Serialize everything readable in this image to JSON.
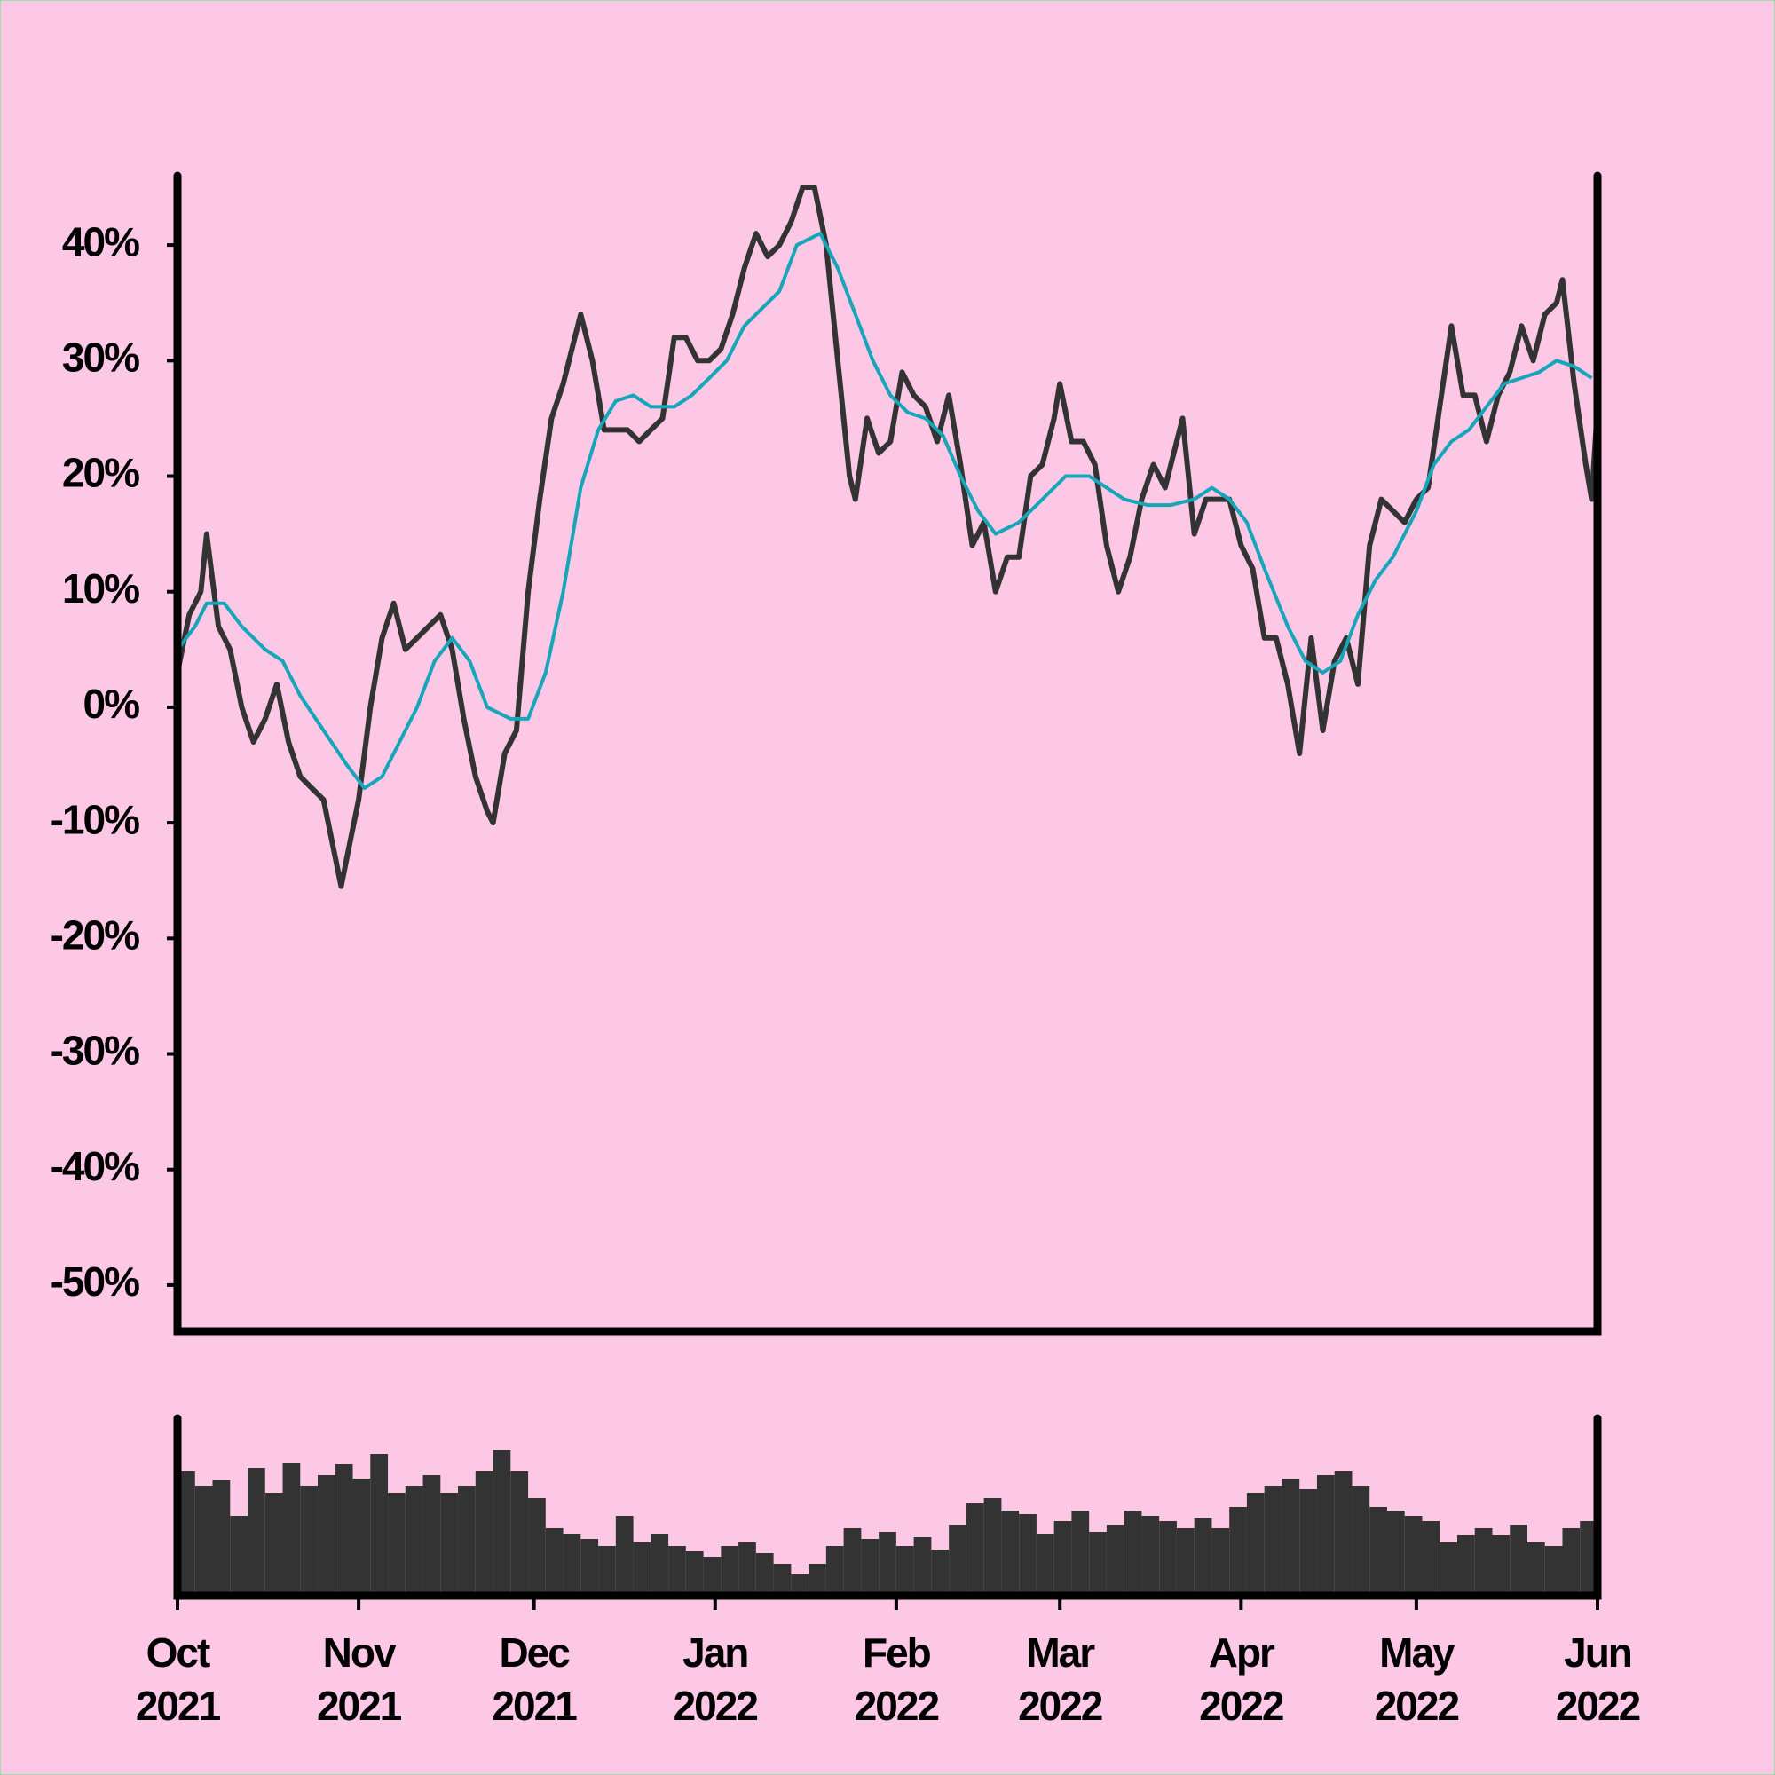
{
  "chart_data": [
    {
      "type": "line",
      "xlim": [
        0,
        243
      ],
      "ylim": [
        -54,
        46
      ],
      "yticks": [
        {
          "value": -50,
          "label": "-50%"
        },
        {
          "value": -40,
          "label": "-40%"
        },
        {
          "value": -30,
          "label": "-30%"
        },
        {
          "value": -20,
          "label": "-20%"
        },
        {
          "value": -10,
          "label": "-10%"
        },
        {
          "value": 0,
          "label": "0%"
        },
        {
          "value": 10,
          "label": "10%"
        },
        {
          "value": 20,
          "label": "20%"
        },
        {
          "value": 30,
          "label": "30%"
        },
        {
          "value": 40,
          "label": "40%"
        }
      ],
      "series": [
        {
          "color": "#333333",
          "x": [
            0,
            2,
            4,
            5,
            7,
            9,
            11,
            13,
            15,
            17,
            19,
            21,
            23,
            25,
            27,
            28,
            29,
            31,
            33,
            35,
            37,
            39,
            41,
            43,
            45,
            47,
            49,
            51,
            53,
            54,
            56,
            58,
            60,
            62,
            64,
            66,
            68,
            69,
            71,
            73,
            75,
            77,
            79,
            81,
            83,
            85,
            87,
            89,
            91,
            93,
            95,
            97,
            99,
            101,
            103,
            105,
            107,
            109,
            111,
            113,
            115,
            116,
            118,
            120,
            122,
            124,
            126,
            128,
            130,
            132,
            134,
            136,
            138,
            140,
            142,
            144,
            146,
            148,
            150,
            151,
            153,
            155,
            157,
            159,
            161,
            163,
            165,
            167,
            169,
            171,
            172,
            174,
            176,
            178,
            180,
            182,
            184,
            186,
            188,
            190,
            192,
            194,
            196,
            198,
            200,
            202,
            204,
            206,
            208,
            210,
            212,
            214,
            216,
            218,
            220,
            222,
            224,
            226,
            228,
            230,
            232,
            234,
            236,
            237,
            239,
            241,
            242,
            243
          ],
          "values": [
            3,
            8,
            10,
            15,
            7,
            5,
            0,
            -3,
            -1,
            2,
            -3,
            -6,
            -7,
            -8,
            -13,
            -15.5,
            -13,
            -8,
            0,
            6,
            9,
            5,
            6,
            7,
            8,
            5,
            -1,
            -6,
            -9,
            -10,
            -4,
            -2,
            10,
            18,
            25,
            28,
            32,
            34,
            30,
            24,
            24,
            24,
            23,
            24,
            25,
            32,
            32,
            30,
            30,
            31,
            34,
            38,
            41,
            39,
            40,
            42,
            45,
            45,
            40,
            30,
            20,
            18,
            25,
            22,
            23,
            29,
            27,
            26,
            23,
            27,
            21,
            14,
            16,
            10,
            13,
            13,
            20,
            21,
            25,
            28,
            23,
            23,
            21,
            14,
            10,
            13,
            18,
            21,
            19,
            23,
            25,
            15,
            18,
            18,
            18,
            14,
            12,
            6,
            6,
            2,
            -4,
            6,
            -2,
            4,
            6,
            2,
            14,
            18,
            17,
            16,
            18,
            19,
            26,
            33,
            27,
            27,
            23,
            27,
            29,
            33,
            30,
            34,
            35,
            37,
            28,
            21,
            18,
            26
          ]
        },
        {
          "color": "#17a6b8",
          "x": [
            0,
            3,
            5,
            8,
            11,
            15,
            18,
            21,
            25,
            29,
            32,
            35,
            38,
            41,
            44,
            47,
            50,
            53,
            57,
            60,
            63,
            66,
            69,
            72,
            75,
            78,
            81,
            85,
            88,
            91,
            94,
            97,
            100,
            103,
            106,
            110,
            113,
            116,
            119,
            122,
            125,
            128,
            131,
            134,
            137,
            140,
            144,
            148,
            152,
            156,
            159,
            162,
            166,
            170,
            174,
            177,
            180,
            183,
            186,
            190,
            193,
            196,
            199,
            202,
            205,
            208,
            212,
            215,
            218,
            221,
            224,
            227,
            230,
            233,
            236,
            239,
            242
          ],
          "values": [
            5,
            7,
            9,
            9,
            7,
            5,
            4,
            1,
            -2,
            -5,
            -7,
            -6,
            -3,
            0,
            4,
            6,
            4,
            0,
            -1,
            -1,
            3,
            10,
            19,
            24,
            26.5,
            27,
            26,
            26,
            27,
            28.5,
            30,
            33,
            34.5,
            36,
            40,
            41,
            38,
            34,
            30,
            27,
            25.5,
            25,
            23.5,
            20,
            17,
            15,
            16,
            18,
            20,
            20,
            19,
            18,
            17.5,
            17.5,
            18,
            19,
            18,
            16,
            12,
            7,
            4,
            3,
            4,
            8,
            11,
            13,
            17,
            21,
            23,
            24,
            26,
            28,
            28.5,
            29,
            30,
            29.5,
            28.5
          ]
        }
      ]
    },
    {
      "type": "bar",
      "color": "#333333",
      "xlim": [
        0,
        243
      ],
      "ylim": [
        0,
        100
      ],
      "xticks": [
        {
          "value": 0,
          "label": "Oct 2021"
        },
        {
          "value": 31,
          "label": "Nov 2021"
        },
        {
          "value": 61,
          "label": "Dec 2021"
        },
        {
          "value": 92,
          "label": "Jan 2022"
        },
        {
          "value": 123,
          "label": "Feb 2022"
        },
        {
          "value": 151,
          "label": "Mar 2022"
        },
        {
          "value": 182,
          "label": "Apr 2022"
        },
        {
          "value": 212,
          "label": "May 2022"
        },
        {
          "value": 243,
          "label": "Jun 2022"
        }
      ],
      "x": [
        0,
        3,
        6,
        9,
        12,
        15,
        18,
        21,
        24,
        27,
        30,
        33,
        36,
        39,
        42,
        45,
        48,
        51,
        54,
        57,
        60,
        63,
        66,
        69,
        72,
        75,
        78,
        81,
        84,
        87,
        90,
        93,
        96,
        99,
        102,
        105,
        108,
        111,
        114,
        117,
        120,
        123,
        126,
        129,
        132,
        135,
        138,
        141,
        144,
        147,
        150,
        153,
        156,
        159,
        162,
        165,
        168,
        171,
        174,
        177,
        180,
        183,
        186,
        189,
        192,
        195,
        198,
        201,
        204,
        207,
        210,
        213,
        216,
        219,
        222,
        225,
        228,
        231,
        234,
        237,
        240
      ],
      "values": [
        70,
        62,
        65,
        45,
        72,
        58,
        75,
        62,
        68,
        74,
        66,
        80,
        58,
        62,
        68,
        58,
        62,
        70,
        82,
        70,
        55,
        38,
        35,
        32,
        28,
        45,
        30,
        35,
        28,
        25,
        22,
        28,
        30,
        24,
        18,
        12,
        18,
        28,
        38,
        32,
        36,
        28,
        33,
        26,
        40,
        52,
        55,
        48,
        46,
        35,
        42,
        48,
        36,
        40,
        48,
        45,
        42,
        38,
        44,
        38,
        50,
        58,
        62,
        66,
        60,
        68,
        70,
        62,
        50,
        48,
        45,
        42,
        30,
        34,
        38,
        34,
        40,
        30,
        28,
        38,
        42
      ]
    }
  ]
}
